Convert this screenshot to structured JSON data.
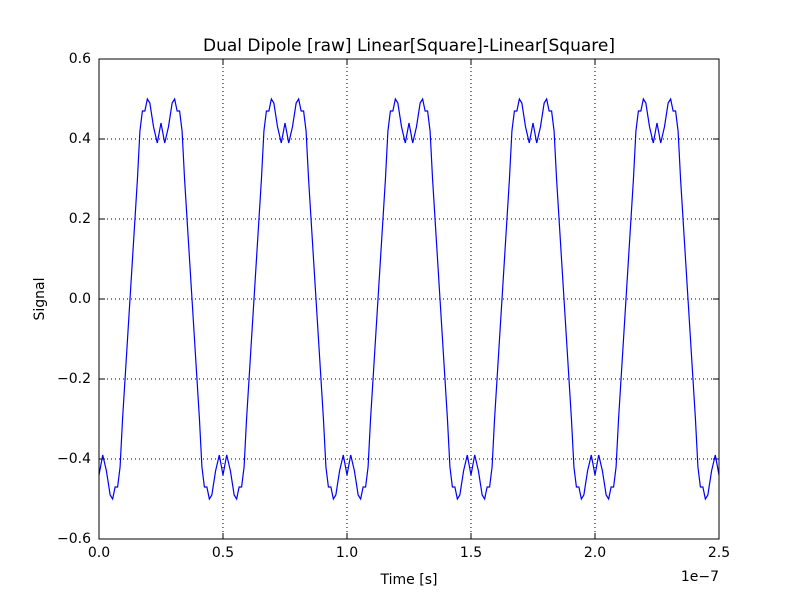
{
  "chart_data": {
    "type": "line",
    "title": "Dual Dipole [raw] Linear[Square]-Linear[Square]",
    "xlabel": "Time [s]",
    "ylabel": "Signal",
    "x_offset_label": "1e−7",
    "color": "#0000ff",
    "grid": true,
    "xlim": [
      0,
      2.5
    ],
    "ylim": [
      -0.6,
      0.6
    ],
    "xticks": [
      {
        "value": 0,
        "label": "0.0"
      },
      {
        "value": 0.5,
        "label": "0.5"
      },
      {
        "value": 1,
        "label": "1.0"
      },
      {
        "value": 1.5,
        "label": "1.5"
      },
      {
        "value": 2,
        "label": "2.0"
      },
      {
        "value": 2.5,
        "label": "2.5"
      }
    ],
    "yticks": [
      {
        "value": -0.6,
        "label": "−0.6"
      },
      {
        "value": -0.4,
        "label": "−0.4"
      },
      {
        "value": -0.2,
        "label": "−0.2"
      },
      {
        "value": 0,
        "label": "0.0"
      },
      0.2,
      0.4,
      0.6
    ],
    "x": [
      0,
      0.015,
      0.03,
      0.045,
      0.055,
      0.065,
      0.075,
      0.085,
      0.095,
      0.11,
      0.125,
      0.14,
      0.155,
      0.165,
      0.175,
      0.185,
      0.195,
      0.205,
      0.22,
      0.235,
      0.25,
      0.265,
      0.28,
      0.295,
      0.305,
      0.315,
      0.325,
      0.335,
      0.345,
      0.36,
      0.375,
      0.39,
      0.405,
      0.415,
      0.425,
      0.435,
      0.445,
      0.455,
      0.47,
      0.485,
      0.5,
      0.515,
      0.53,
      0.545,
      0.555,
      0.565,
      0.575,
      0.585,
      0.595,
      0.61,
      0.625,
      0.64,
      0.655,
      0.665,
      0.675,
      0.685,
      0.695,
      0.705,
      0.72,
      0.735,
      0.75,
      0.765,
      0.78,
      0.795,
      0.805,
      0.815,
      0.825,
      0.835,
      0.845,
      0.86,
      0.875,
      0.89,
      0.905,
      0.915,
      0.925,
      0.935,
      0.945,
      0.955,
      0.97,
      0.985,
      1.0,
      1.015,
      1.03,
      1.045,
      1.055,
      1.065,
      1.075,
      1.085,
      1.095,
      1.11,
      1.125,
      1.14,
      1.155,
      1.165,
      1.175,
      1.185,
      1.195,
      1.205,
      1.22,
      1.235,
      1.25,
      1.265,
      1.28,
      1.295,
      1.305,
      1.315,
      1.325,
      1.335,
      1.345,
      1.36,
      1.375,
      1.39,
      1.405,
      1.415,
      1.425,
      1.435,
      1.445,
      1.455,
      1.47,
      1.485,
      1.5,
      1.515,
      1.53,
      1.545,
      1.555,
      1.565,
      1.575,
      1.585,
      1.595,
      1.61,
      1.625,
      1.64,
      1.655,
      1.665,
      1.675,
      1.685,
      1.695,
      1.705,
      1.72,
      1.735,
      1.75,
      1.765,
      1.78,
      1.795,
      1.805,
      1.815,
      1.825,
      1.835,
      1.845,
      1.86,
      1.875,
      1.89,
      1.905,
      1.915,
      1.925,
      1.935,
      1.945,
      1.955,
      1.97,
      1.985,
      2.0,
      2.015,
      2.03,
      2.045,
      2.055,
      2.065,
      2.075,
      2.085,
      2.095,
      2.11,
      2.125,
      2.14,
      2.155,
      2.165,
      2.175,
      2.185,
      2.195,
      2.205,
      2.22,
      2.235,
      2.25,
      2.265,
      2.28,
      2.295,
      2.305,
      2.315,
      2.325,
      2.335,
      2.345,
      2.36,
      2.375,
      2.39,
      2.405,
      2.415,
      2.425,
      2.435,
      2.445,
      2.455,
      2.47,
      2.485,
      2.5
    ],
    "values": [
      -0.44,
      -0.39,
      -0.43,
      -0.49,
      -0.5,
      -0.47,
      -0.47,
      -0.42,
      -0.3,
      -0.15,
      0,
      0.15,
      0.3,
      0.42,
      0.47,
      0.47,
      0.5,
      0.49,
      0.43,
      0.39,
      0.44,
      0.39,
      0.43,
      0.49,
      0.5,
      0.47,
      0.47,
      0.42,
      0.3,
      0.15,
      0,
      -0.15,
      -0.3,
      -0.42,
      -0.47,
      -0.47,
      -0.5,
      -0.49,
      -0.43,
      -0.39,
      -0.44,
      -0.39,
      -0.43,
      -0.49,
      -0.5,
      -0.47,
      -0.47,
      -0.42,
      -0.3,
      -0.15,
      0,
      0.15,
      0.3,
      0.42,
      0.47,
      0.47,
      0.5,
      0.49,
      0.43,
      0.39,
      0.44,
      0.39,
      0.43,
      0.49,
      0.5,
      0.47,
      0.47,
      0.42,
      0.3,
      0.15,
      0,
      -0.15,
      -0.3,
      -0.42,
      -0.47,
      -0.47,
      -0.5,
      -0.49,
      -0.43,
      -0.39,
      -0.44,
      -0.39,
      -0.43,
      -0.49,
      -0.5,
      -0.47,
      -0.47,
      -0.42,
      -0.3,
      -0.15,
      0,
      0.15,
      0.3,
      0.42,
      0.47,
      0.47,
      0.5,
      0.49,
      0.43,
      0.39,
      0.44,
      0.39,
      0.43,
      0.49,
      0.5,
      0.47,
      0.47,
      0.42,
      0.3,
      0.15,
      0,
      -0.15,
      -0.3,
      -0.42,
      -0.47,
      -0.47,
      -0.5,
      -0.49,
      -0.43,
      -0.39,
      -0.44,
      -0.39,
      -0.43,
      -0.49,
      -0.5,
      -0.47,
      -0.47,
      -0.42,
      -0.3,
      -0.15,
      0,
      0.15,
      0.3,
      0.42,
      0.47,
      0.47,
      0.5,
      0.49,
      0.43,
      0.39,
      0.44,
      0.39,
      0.43,
      0.49,
      0.5,
      0.47,
      0.47,
      0.42,
      0.3,
      0.15,
      0,
      -0.15,
      -0.3,
      -0.42,
      -0.47,
      -0.47,
      -0.5,
      -0.49,
      -0.43,
      -0.39,
      -0.44,
      -0.39,
      -0.43,
      -0.49,
      -0.5,
      -0.47,
      -0.47,
      -0.42,
      -0.3,
      -0.15,
      0,
      0.15,
      0.3,
      0.42,
      0.47,
      0.47,
      0.5,
      0.49,
      0.43,
      0.39,
      0.44,
      0.39,
      0.43,
      0.49,
      0.5,
      0.47,
      0.47,
      0.42,
      0.3,
      0.15,
      0,
      -0.15,
      -0.3,
      -0.42,
      -0.47,
      -0.47,
      -0.5,
      -0.49,
      -0.43,
      -0.39,
      -0.44
    ]
  }
}
